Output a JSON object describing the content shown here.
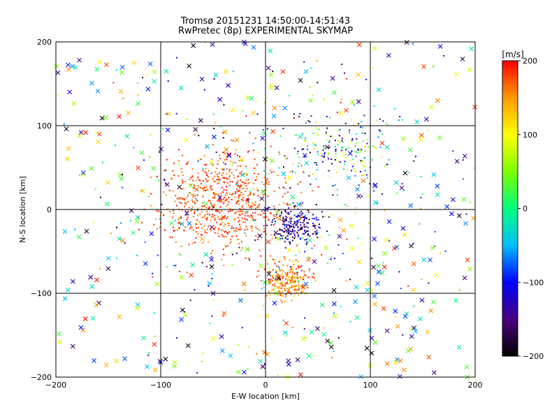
{
  "chart_data": {
    "type": "scatter",
    "title": "Tromsø 20151231 14:50:00-14:51:43",
    "subtitle": "RwPretec (8p) EXPERIMENTAL SKYMAP",
    "xlabel": "E-W location [km]",
    "ylabel": "N-S location [km]",
    "xlim": [
      -200,
      200
    ],
    "ylim": [
      -200,
      200
    ],
    "x_ticks": [
      -200,
      -100,
      0,
      100,
      200
    ],
    "y_ticks": [
      -200,
      -100,
      0,
      100,
      200
    ],
    "grid": true,
    "colorbar": {
      "label": "[m/s]",
      "range": [
        -200,
        200
      ],
      "ticks": [
        200,
        100,
        0,
        -100,
        -200
      ],
      "colors": [
        "#000000",
        "#4b007f",
        "#0000ff",
        "#00bfff",
        "#00ff7f",
        "#7fff00",
        "#ffff00",
        "#ff9900",
        "#ff0000"
      ]
    },
    "clusters": [
      {
        "center": [
          -40,
          10
        ],
        "spread": [
          45,
          40
        ],
        "count": 700,
        "velocity_range": [
          150,
          200
        ]
      },
      {
        "center": [
          20,
          -85
        ],
        "spread": [
          15,
          15
        ],
        "count": 260,
        "velocity_range": [
          110,
          200
        ]
      },
      {
        "center": [
          30,
          -20
        ],
        "spread": [
          15,
          15
        ],
        "count": 200,
        "velocity_range": [
          -200,
          -80
        ]
      },
      {
        "center": [
          70,
          70
        ],
        "spread": [
          35,
          30
        ],
        "count": 180,
        "velocity_range": [
          -200,
          120
        ]
      },
      {
        "center": [
          0,
          0
        ],
        "spread": [
          140,
          140
        ],
        "count": 380,
        "velocity_range": [
          -200,
          200
        ]
      }
    ],
    "x_markers": {
      "count": 360,
      "range_x": [
        -200,
        200
      ],
      "range_y": [
        -200,
        200
      ],
      "velocity_range": [
        -200,
        200
      ]
    }
  }
}
